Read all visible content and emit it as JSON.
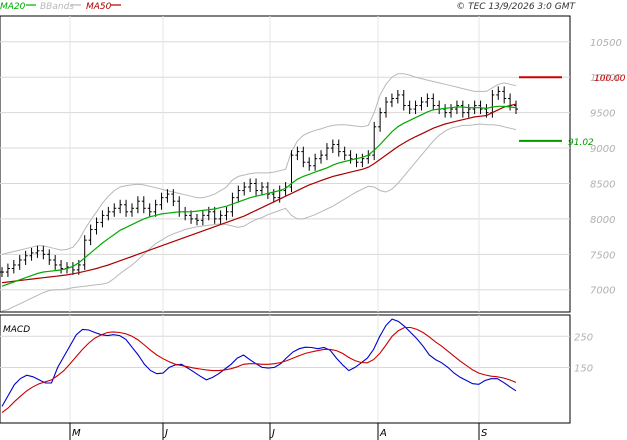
{
  "header": {
    "legend": [
      {
        "name": "MA20",
        "color": "#00aa00"
      },
      {
        "name": "BBands",
        "color": "#b8b8b8"
      },
      {
        "name": "MA50",
        "color": "#aa0000"
      }
    ],
    "credit": "© TEC 13/9/2026 3:0 GMT"
  },
  "chart_data": [
    {
      "type": "candlestick",
      "title": "",
      "y_ticks": [
        7000,
        7500,
        8000,
        8500,
        9000,
        9500,
        10000,
        10500
      ],
      "ylim": [
        6700,
        10850
      ],
      "x_ticks": [
        "M",
        "J",
        "J",
        "A",
        "S"
      ],
      "grid": true,
      "levels": [
        {
          "label": "100.00",
          "value": 10000,
          "color": "#cc0000"
        },
        {
          "label": "91.02",
          "value": 9102,
          "color": "#009900"
        }
      ],
      "price": [
        7250,
        7300,
        7350,
        7420,
        7480,
        7520,
        7550,
        7500,
        7420,
        7350,
        7300,
        7320,
        7280,
        7350,
        7700,
        7850,
        7950,
        8050,
        8100,
        8150,
        8200,
        8100,
        8150,
        8250,
        8150,
        8100,
        8200,
        8300,
        8350,
        8250,
        8100,
        8050,
        8000,
        7980,
        8050,
        8100,
        8000,
        8050,
        8100,
        8300,
        8400,
        8450,
        8500,
        8400,
        8450,
        8350,
        8300,
        8400,
        8450,
        8900,
        8950,
        8800,
        8750,
        8850,
        8900,
        9000,
        9050,
        8950,
        8900,
        8850,
        8800,
        8850,
        8900,
        9300,
        9500,
        9650,
        9700,
        9750,
        9600,
        9550,
        9600,
        9650,
        9700,
        9600,
        9550,
        9500,
        9550,
        9600,
        9500,
        9550,
        9600,
        9550,
        9500,
        9750,
        9800,
        9700,
        9600,
        9550
      ],
      "ma20": [
        7050,
        7080,
        7110,
        7140,
        7170,
        7200,
        7230,
        7250,
        7260,
        7270,
        7280,
        7300,
        7330,
        7380,
        7450,
        7520,
        7590,
        7660,
        7720,
        7780,
        7840,
        7880,
        7920,
        7960,
        8000,
        8030,
        8050,
        8070,
        8080,
        8090,
        8100,
        8100,
        8100,
        8110,
        8120,
        8130,
        8140,
        8160,
        8180,
        8210,
        8240,
        8270,
        8300,
        8320,
        8340,
        8360,
        8380,
        8400,
        8430,
        8500,
        8560,
        8600,
        8630,
        8660,
        8690,
        8720,
        8760,
        8790,
        8810,
        8830,
        8850,
        8870,
        8900,
        8970,
        9050,
        9140,
        9230,
        9300,
        9350,
        9390,
        9430,
        9470,
        9510,
        9540,
        9550,
        9560,
        9570,
        9580,
        9580,
        9570,
        9570,
        9570,
        9560,
        9580,
        9590,
        9590,
        9580,
        9570
      ],
      "ma50": [
        7100,
        7110,
        7120,
        7130,
        7140,
        7150,
        7160,
        7170,
        7180,
        7190,
        7200,
        7210,
        7225,
        7240,
        7260,
        7280,
        7300,
        7325,
        7350,
        7380,
        7410,
        7440,
        7470,
        7500,
        7530,
        7560,
        7590,
        7620,
        7650,
        7680,
        7710,
        7740,
        7770,
        7800,
        7830,
        7860,
        7890,
        7920,
        7950,
        7980,
        8010,
        8040,
        8080,
        8120,
        8160,
        8200,
        8240,
        8280,
        8320,
        8360,
        8400,
        8440,
        8480,
        8510,
        8540,
        8570,
        8600,
        8620,
        8640,
        8660,
        8680,
        8700,
        8730,
        8780,
        8840,
        8900,
        8960,
        9020,
        9070,
        9120,
        9160,
        9200,
        9240,
        9280,
        9310,
        9340,
        9360,
        9380,
        9400,
        9420,
        9440,
        9450,
        9460,
        9500,
        9540,
        9580,
        9600,
        9620
      ],
      "bb_upper": [
        7500,
        7520,
        7540,
        7560,
        7580,
        7600,
        7620,
        7620,
        7600,
        7580,
        7560,
        7570,
        7600,
        7700,
        7850,
        7980,
        8100,
        8220,
        8320,
        8400,
        8450,
        8470,
        8480,
        8490,
        8480,
        8460,
        8440,
        8420,
        8400,
        8380,
        8360,
        8340,
        8320,
        8300,
        8300,
        8320,
        8350,
        8400,
        8450,
        8550,
        8600,
        8620,
        8640,
        8650,
        8650,
        8650,
        8660,
        8680,
        8700,
        8950,
        9100,
        9180,
        9220,
        9250,
        9270,
        9300,
        9320,
        9330,
        9330,
        9320,
        9310,
        9300,
        9320,
        9500,
        9750,
        9900,
        10000,
        10050,
        10050,
        10030,
        10000,
        9980,
        9960,
        9940,
        9920,
        9900,
        9880,
        9860,
        9840,
        9820,
        9800,
        9800,
        9800,
        9850,
        9900,
        9920,
        9900,
        9880
      ],
      "bb_lower": [
        6700,
        6720,
        6760,
        6800,
        6840,
        6880,
        6920,
        6960,
        6990,
        7000,
        7000,
        7010,
        7030,
        7040,
        7050,
        7060,
        7070,
        7080,
        7100,
        7160,
        7230,
        7290,
        7350,
        7420,
        7500,
        7580,
        7650,
        7700,
        7750,
        7790,
        7820,
        7850,
        7870,
        7890,
        7900,
        7910,
        7920,
        7930,
        7920,
        7900,
        7880,
        7900,
        7950,
        7990,
        8020,
        8060,
        8090,
        8120,
        8150,
        8050,
        8000,
        8000,
        8030,
        8060,
        8100,
        8140,
        8180,
        8230,
        8280,
        8330,
        8380,
        8420,
        8460,
        8450,
        8400,
        8380,
        8420,
        8500,
        8600,
        8700,
        8800,
        8900,
        9000,
        9100,
        9180,
        9240,
        9280,
        9300,
        9320,
        9320,
        9330,
        9340,
        9330,
        9330,
        9320,
        9300,
        9280,
        9260
      ]
    },
    {
      "type": "line",
      "title": "MACD",
      "y_ticks": [
        150,
        250
      ],
      "ylim": [
        -25,
        315
      ],
      "series": [
        {
          "color": "#0000cc",
          "values": [
            25,
            60,
            95,
            115,
            125,
            120,
            110,
            100,
            100,
            150,
            185,
            220,
            255,
            272,
            270,
            262,
            255,
            252,
            255,
            252,
            240,
            215,
            190,
            160,
            140,
            130,
            132,
            150,
            158,
            160,
            148,
            135,
            122,
            110,
            118,
            130,
            145,
            160,
            180,
            190,
            175,
            162,
            150,
            148,
            150,
            162,
            182,
            200,
            210,
            215,
            214,
            210,
            214,
            205,
            180,
            158,
            140,
            150,
            165,
            180,
            208,
            250,
            285,
            305,
            298,
            282,
            262,
            242,
            218,
            190,
            175,
            165,
            150,
            132,
            118,
            108,
            98,
            96,
            108,
            114,
            114,
            102,
            88,
            75
          ]
        },
        {
          "color": "#cc0000",
          "values": [
            5,
            20,
            40,
            58,
            75,
            88,
            98,
            104,
            110,
            124,
            140,
            162,
            185,
            208,
            228,
            244,
            254,
            262,
            264,
            262,
            258,
            250,
            238,
            222,
            205,
            190,
            178,
            168,
            160,
            156,
            152,
            148,
            145,
            142,
            140,
            140,
            142,
            146,
            152,
            160,
            162,
            162,
            160,
            160,
            162,
            166,
            172,
            180,
            188,
            195,
            200,
            204,
            208,
            208,
            204,
            195,
            182,
            172,
            166,
            165,
            175,
            195,
            222,
            250,
            268,
            278,
            278,
            272,
            262,
            248,
            232,
            218,
            202,
            186,
            170,
            156,
            142,
            132,
            126,
            122,
            120,
            116,
            110,
            102
          ]
        }
      ]
    }
  ]
}
